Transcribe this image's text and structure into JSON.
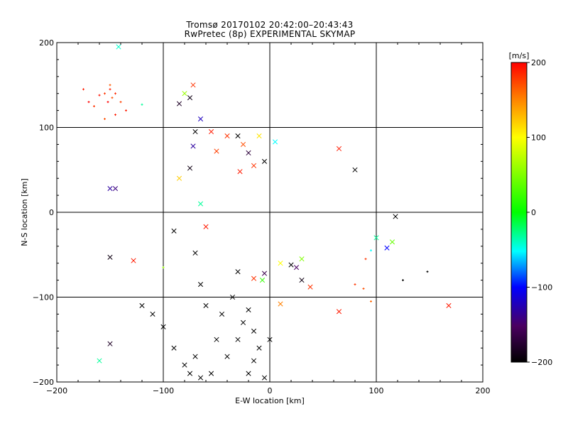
{
  "title_line1": "Tromsø 20170102 20:42:00–20:43:43",
  "title_line2": "RwPretec (8p) EXPERIMENTAL SKYMAP",
  "chart_data": {
    "type": "scatter",
    "title": "Tromsø 20170102 20:42:00–20:43:43 / RwPretec (8p) EXPERIMENTAL SKYMAP",
    "xlabel": "E-W location [km]",
    "ylabel": "N-S location [km]",
    "xlim": [
      -200,
      200
    ],
    "ylim": [
      -200,
      200
    ],
    "xticks": [
      -200,
      -100,
      0,
      100,
      200
    ],
    "yticks": [
      -200,
      -100,
      0,
      100,
      200
    ],
    "grid": true,
    "grid_lines_x": [
      -100,
      0,
      100
    ],
    "grid_lines_y": [
      -100,
      0,
      100
    ],
    "colorbar": {
      "label": "[m/s]",
      "min": -200,
      "max": 200,
      "ticks": [
        200,
        100,
        0,
        -100,
        -200
      ],
      "colormap": "rainbow (black→purple→blue→cyan→green→yellow→red)"
    },
    "markers": {
      "plus": "meteor echo (small)",
      "cross": "meteor echo (large)"
    },
    "points": [
      {
        "x": -155,
        "y": 140,
        "v": 180,
        "m": "+"
      },
      {
        "x": -150,
        "y": 145,
        "v": 190,
        "m": "+"
      },
      {
        "x": -148,
        "y": 135,
        "v": 170,
        "m": "+"
      },
      {
        "x": -152,
        "y": 130,
        "v": 200,
        "m": "+"
      },
      {
        "x": -145,
        "y": 140,
        "v": 185,
        "m": "+"
      },
      {
        "x": -160,
        "y": 138,
        "v": 195,
        "m": "+"
      },
      {
        "x": -140,
        "y": 130,
        "v": 175,
        "m": "+"
      },
      {
        "x": -135,
        "y": 120,
        "v": 190,
        "m": "+"
      },
      {
        "x": -150,
        "y": 150,
        "v": 165,
        "m": "+"
      },
      {
        "x": -175,
        "y": 145,
        "v": 190,
        "m": "+"
      },
      {
        "x": -170,
        "y": 130,
        "v": 200,
        "m": "+"
      },
      {
        "x": -165,
        "y": 125,
        "v": 180,
        "m": "+"
      },
      {
        "x": -145,
        "y": 115,
        "v": 190,
        "m": "+"
      },
      {
        "x": -155,
        "y": 110,
        "v": 170,
        "m": "+"
      },
      {
        "x": -142,
        "y": 195,
        "v": -40,
        "m": "x"
      },
      {
        "x": -120,
        "y": 127,
        "v": -30,
        "m": "+"
      },
      {
        "x": -85,
        "y": 128,
        "v": -180,
        "m": "x"
      },
      {
        "x": -80,
        "y": 140,
        "v": 60,
        "m": "x"
      },
      {
        "x": -75,
        "y": 135,
        "v": -190,
        "m": "x"
      },
      {
        "x": -72,
        "y": 150,
        "v": 180,
        "m": "x"
      },
      {
        "x": -65,
        "y": 110,
        "v": -120,
        "m": "x"
      },
      {
        "x": -70,
        "y": 95,
        "v": -200,
        "m": "x"
      },
      {
        "x": -72,
        "y": 78,
        "v": -130,
        "m": "x"
      },
      {
        "x": -55,
        "y": 95,
        "v": 190,
        "m": "x"
      },
      {
        "x": -40,
        "y": 90,
        "v": 180,
        "m": "x"
      },
      {
        "x": -50,
        "y": 72,
        "v": 175,
        "m": "x"
      },
      {
        "x": -30,
        "y": 90,
        "v": -200,
        "m": "x"
      },
      {
        "x": -25,
        "y": 80,
        "v": 170,
        "m": "x"
      },
      {
        "x": -20,
        "y": 70,
        "v": -170,
        "m": "x"
      },
      {
        "x": -10,
        "y": 90,
        "v": 110,
        "m": "x"
      },
      {
        "x": 5,
        "y": 83,
        "v": -50,
        "m": "x"
      },
      {
        "x": -15,
        "y": 55,
        "v": 180,
        "m": "x"
      },
      {
        "x": -5,
        "y": 60,
        "v": -200,
        "m": "x"
      },
      {
        "x": -28,
        "y": 48,
        "v": 190,
        "m": "x"
      },
      {
        "x": -75,
        "y": 52,
        "v": -190,
        "m": "x"
      },
      {
        "x": -85,
        "y": 40,
        "v": 120,
        "m": "x"
      },
      {
        "x": -65,
        "y": 10,
        "v": -30,
        "m": "x"
      },
      {
        "x": -60,
        "y": -17,
        "v": 190,
        "m": "x"
      },
      {
        "x": -150,
        "y": 28,
        "v": -130,
        "m": "x"
      },
      {
        "x": -145,
        "y": 28,
        "v": -140,
        "m": "x"
      },
      {
        "x": -90,
        "y": -22,
        "v": -200,
        "m": "x"
      },
      {
        "x": -150,
        "y": -53,
        "v": -190,
        "m": "x"
      },
      {
        "x": -128,
        "y": -57,
        "v": 190,
        "m": "x"
      },
      {
        "x": -70,
        "y": -48,
        "v": -200,
        "m": "x"
      },
      {
        "x": -30,
        "y": -70,
        "v": -200,
        "m": "x"
      },
      {
        "x": -15,
        "y": -78,
        "v": 180,
        "m": "x"
      },
      {
        "x": -5,
        "y": -72,
        "v": -160,
        "m": "x"
      },
      {
        "x": -7,
        "y": -80,
        "v": 20,
        "m": "x"
      },
      {
        "x": 10,
        "y": -60,
        "v": 100,
        "m": "x"
      },
      {
        "x": 20,
        "y": -62,
        "v": -200,
        "m": "x"
      },
      {
        "x": 25,
        "y": -65,
        "v": -150,
        "m": "x"
      },
      {
        "x": 30,
        "y": -55,
        "v": 50,
        "m": "x"
      },
      {
        "x": 38,
        "y": -88,
        "v": 180,
        "m": "x"
      },
      {
        "x": 30,
        "y": -80,
        "v": -190,
        "m": "x"
      },
      {
        "x": 65,
        "y": 75,
        "v": 190,
        "m": "x"
      },
      {
        "x": 80,
        "y": 50,
        "v": -200,
        "m": "x"
      },
      {
        "x": 100,
        "y": -30,
        "v": -30,
        "m": "x"
      },
      {
        "x": 110,
        "y": -42,
        "v": -100,
        "m": "x"
      },
      {
        "x": 115,
        "y": -35,
        "v": 40,
        "m": "x"
      },
      {
        "x": 118,
        "y": -5,
        "v": -200,
        "m": "x"
      },
      {
        "x": 95,
        "y": -45,
        "v": -50,
        "m": "+"
      },
      {
        "x": 90,
        "y": -55,
        "v": 180,
        "m": "+"
      },
      {
        "x": 125,
        "y": -80,
        "v": -200,
        "m": "+"
      },
      {
        "x": 148,
        "y": -70,
        "v": -200,
        "m": "+"
      },
      {
        "x": 168,
        "y": -110,
        "v": 190,
        "m": "x"
      },
      {
        "x": 65,
        "y": -117,
        "v": 190,
        "m": "x"
      },
      {
        "x": 10,
        "y": -108,
        "v": 150,
        "m": "x"
      },
      {
        "x": 80,
        "y": -85,
        "v": 180,
        "m": "+"
      },
      {
        "x": 88,
        "y": -90,
        "v": 170,
        "m": "+"
      },
      {
        "x": 95,
        "y": -105,
        "v": 160,
        "m": "+"
      },
      {
        "x": -100,
        "y": -65,
        "v": 60,
        "m": "+"
      },
      {
        "x": -150,
        "y": -155,
        "v": -180,
        "m": "x"
      },
      {
        "x": -160,
        "y": -175,
        "v": -30,
        "m": "x"
      },
      {
        "x": -120,
        "y": -110,
        "v": -200,
        "m": "x"
      },
      {
        "x": -110,
        "y": -120,
        "v": -200,
        "m": "x"
      },
      {
        "x": -100,
        "y": -135,
        "v": -200,
        "m": "x"
      },
      {
        "x": -90,
        "y": -160,
        "v": -200,
        "m": "x"
      },
      {
        "x": -80,
        "y": -180,
        "v": -200,
        "m": "x"
      },
      {
        "x": -75,
        "y": -190,
        "v": -200,
        "m": "x"
      },
      {
        "x": -65,
        "y": -195,
        "v": -200,
        "m": "x"
      },
      {
        "x": -55,
        "y": -190,
        "v": -200,
        "m": "x"
      },
      {
        "x": -40,
        "y": -170,
        "v": -200,
        "m": "x"
      },
      {
        "x": -30,
        "y": -150,
        "v": -200,
        "m": "x"
      },
      {
        "x": -25,
        "y": -130,
        "v": -200,
        "m": "x"
      },
      {
        "x": -20,
        "y": -115,
        "v": -200,
        "m": "x"
      },
      {
        "x": -15,
        "y": -140,
        "v": -200,
        "m": "x"
      },
      {
        "x": -10,
        "y": -160,
        "v": -200,
        "m": "x"
      },
      {
        "x": -15,
        "y": -175,
        "v": -200,
        "m": "x"
      },
      {
        "x": -20,
        "y": -190,
        "v": -200,
        "m": "x"
      },
      {
        "x": -5,
        "y": -195,
        "v": -200,
        "m": "x"
      },
      {
        "x": 0,
        "y": -150,
        "v": -200,
        "m": "x"
      },
      {
        "x": -60,
        "y": -110,
        "v": -200,
        "m": "x"
      },
      {
        "x": -45,
        "y": -120,
        "v": -200,
        "m": "x"
      },
      {
        "x": -35,
        "y": -100,
        "v": -200,
        "m": "x"
      },
      {
        "x": -50,
        "y": -150,
        "v": -200,
        "m": "x"
      },
      {
        "x": -70,
        "y": -170,
        "v": -200,
        "m": "x"
      },
      {
        "x": -65,
        "y": -85,
        "v": -200,
        "m": "x"
      }
    ]
  }
}
